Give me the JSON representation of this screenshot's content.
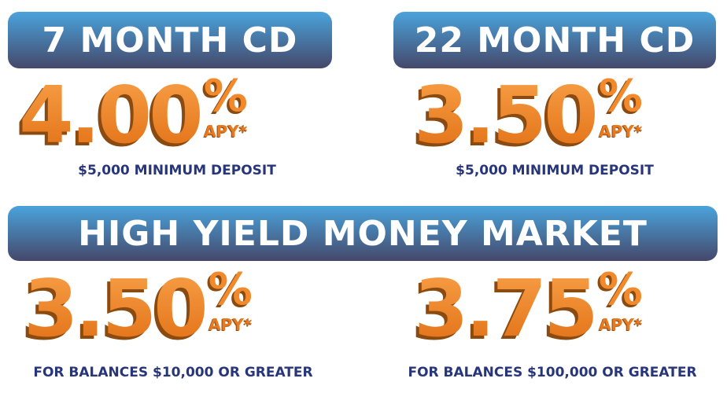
{
  "offers": [
    {
      "title": "7 MONTH CD",
      "rate": "4.00",
      "percent": "%",
      "apy": "APY*",
      "caption": "$5,000 MINIMUM DEPOSIT"
    },
    {
      "title": "22 MONTH CD",
      "rate": "3.50",
      "percent": "%",
      "apy": "APY*",
      "caption": "$5,000 MINIMUM DEPOSIT"
    }
  ],
  "money_market": {
    "title": "HIGH YIELD MONEY MARKET",
    "tiers": [
      {
        "rate": "3.50",
        "percent": "%",
        "apy": "APY*",
        "caption": "FOR BALANCES $10,000 OR GREATER"
      },
      {
        "rate": "3.75",
        "percent": "%",
        "apy": "APY*",
        "caption": "FOR BALANCES $100,000 OR GREATER"
      }
    ]
  },
  "colors": {
    "banner_top": "#4aa3dc",
    "banner_bottom": "#45486a",
    "orange": "#f28a2c",
    "navy": "#27367a"
  }
}
